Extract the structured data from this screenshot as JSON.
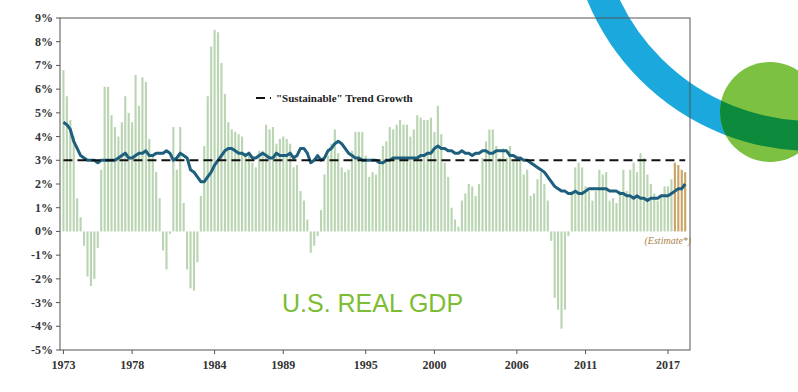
{
  "chart_data": {
    "type": "bar",
    "title": "U.S. REAL GDP",
    "x": [
      1973,
      1973.25,
      1973.5,
      1973.75,
      1974,
      1974.25,
      1974.5,
      1974.75,
      1975,
      1975.25,
      1975.5,
      1975.75,
      1976,
      1976.25,
      1976.5,
      1976.75,
      1977,
      1977.25,
      1977.5,
      1977.75,
      1978,
      1978.25,
      1978.5,
      1978.75,
      1979,
      1979.25,
      1979.5,
      1979.75,
      1980,
      1980.25,
      1980.5,
      1980.75,
      1981,
      1981.25,
      1981.5,
      1981.75,
      1982,
      1982.25,
      1982.5,
      1982.75,
      1983,
      1983.25,
      1983.5,
      1983.75,
      1984,
      1984.25,
      1984.5,
      1984.75,
      1985,
      1985.25,
      1985.5,
      1985.75,
      1986,
      1986.25,
      1986.5,
      1986.75,
      1987,
      1987.25,
      1987.5,
      1987.75,
      1988,
      1988.25,
      1988.5,
      1988.75,
      1989,
      1989.25,
      1989.5,
      1989.75,
      1990,
      1990.25,
      1990.5,
      1990.75,
      1991,
      1991.25,
      1991.5,
      1991.75,
      1992,
      1992.25,
      1992.5,
      1992.75,
      1993,
      1993.25,
      1993.5,
      1993.75,
      1994,
      1994.25,
      1994.5,
      1994.75,
      1995,
      1995.25,
      1995.5,
      1995.75,
      1996,
      1996.25,
      1996.5,
      1996.75,
      1997,
      1997.25,
      1997.5,
      1997.75,
      1998,
      1998.25,
      1998.5,
      1998.75,
      1999,
      1999.25,
      1999.5,
      1999.75,
      2000,
      2000.25,
      2000.5,
      2000.75,
      2001,
      2001.25,
      2001.5,
      2001.75,
      2002,
      2002.25,
      2002.5,
      2002.75,
      2003,
      2003.25,
      2003.5,
      2003.75,
      2004,
      2004.25,
      2004.5,
      2004.75,
      2005,
      2005.25,
      2005.5,
      2005.75,
      2006,
      2006.25,
      2006.5,
      2006.75,
      2007,
      2007.25,
      2007.5,
      2007.75,
      2008,
      2008.25,
      2008.5,
      2008.75,
      2009,
      2009.25,
      2009.5,
      2009.75,
      2010,
      2010.25,
      2010.5,
      2010.75,
      2011,
      2011.25,
      2011.5,
      2011.75,
      2012,
      2012.25,
      2012.5,
      2012.75,
      2013,
      2013.25,
      2013.5,
      2013.75,
      2014,
      2014.25,
      2014.5,
      2014.75,
      2015,
      2015.25,
      2015.5,
      2015.75,
      2016,
      2016.25,
      2016.5,
      2016.75,
      2017,
      2017.25,
      2017.5,
      2017.75,
      2018,
      2018.25
    ],
    "series": [
      {
        "type": "bar",
        "color": "#b9d5b2",
        "values": [
          6.8,
          5.7,
          4.7,
          4.0,
          1.4,
          0.6,
          -0.6,
          -1.9,
          -2.3,
          -2.0,
          -0.7,
          2.6,
          6.1,
          6.1,
          4.9,
          4.4,
          4.0,
          4.6,
          5.7,
          5.0,
          4.6,
          6.6,
          5.3,
          6.5,
          6.3,
          3.9,
          3.2,
          2.5,
          1.4,
          -0.8,
          -1.6,
          -0.1,
          4.4,
          2.6,
          4.4,
          1.2,
          -1.6,
          -2.4,
          -2.5,
          -1.3,
          1.5,
          3.6,
          5.7,
          7.8,
          8.5,
          8.4,
          7.1,
          5.8,
          4.6,
          4.3,
          4.2,
          4.1,
          4.0,
          3.3,
          3.2,
          2.9,
          2.7,
          3.4,
          3.4,
          4.5,
          4.3,
          4.4,
          3.7,
          3.9,
          4.0,
          3.9,
          3.7,
          2.7,
          2.8,
          1.7,
          1.3,
          0.5,
          -0.9,
          -0.6,
          -0.2,
          0.9,
          2.4,
          3.2,
          3.7,
          4.3,
          3.3,
          2.7,
          2.5,
          2.6,
          3.4,
          4.2,
          4.2,
          4.2,
          3.2,
          2.3,
          2.5,
          2.4,
          2.8,
          3.6,
          3.8,
          4.4,
          4.3,
          4.5,
          4.7,
          4.5,
          4.5,
          4.0,
          4.3,
          4.9,
          4.8,
          4.7,
          4.7,
          4.8,
          4.2,
          5.3,
          4.1,
          2.9,
          2.3,
          1.0,
          0.5,
          0.2,
          1.3,
          1.6,
          2.0,
          1.9,
          1.5,
          2.0,
          3.1,
          3.8,
          4.3,
          4.3,
          3.6,
          3.1,
          3.5,
          3.1,
          3.6,
          3.0,
          3.2,
          3.0,
          2.4,
          2.6,
          1.5,
          1.6,
          2.2,
          2.5,
          2.0,
          1.3,
          -0.4,
          -2.8,
          -3.3,
          -4.1,
          -3.3,
          -0.2,
          1.7,
          2.7,
          2.9,
          2.7,
          1.9,
          1.7,
          1.3,
          1.7,
          2.6,
          2.4,
          2.5,
          1.3,
          1.4,
          1.2,
          1.7,
          2.6,
          1.7,
          2.6,
          2.9,
          2.5,
          3.3,
          3.1,
          2.4,
          2.0,
          1.6,
          1.3,
          1.5,
          1.9,
          1.9,
          2.2,
          null,
          null,
          null,
          null
        ]
      },
      {
        "name": "(Estimate*)",
        "type": "bar",
        "color": "#c9a566",
        "values": [
          null,
          null,
          null,
          null,
          null,
          null,
          null,
          null,
          null,
          null,
          null,
          null,
          null,
          null,
          null,
          null,
          null,
          null,
          null,
          null,
          null,
          null,
          null,
          null,
          null,
          null,
          null,
          null,
          null,
          null,
          null,
          null,
          null,
          null,
          null,
          null,
          null,
          null,
          null,
          null,
          null,
          null,
          null,
          null,
          null,
          null,
          null,
          null,
          null,
          null,
          null,
          null,
          null,
          null,
          null,
          null,
          null,
          null,
          null,
          null,
          null,
          null,
          null,
          null,
          null,
          null,
          null,
          null,
          null,
          null,
          null,
          null,
          null,
          null,
          null,
          null,
          null,
          null,
          null,
          null,
          null,
          null,
          null,
          null,
          null,
          null,
          null,
          null,
          null,
          null,
          null,
          null,
          null,
          null,
          null,
          null,
          null,
          null,
          null,
          null,
          null,
          null,
          null,
          null,
          null,
          null,
          null,
          null,
          null,
          null,
          null,
          null,
          null,
          null,
          null,
          null,
          null,
          null,
          null,
          null,
          null,
          null,
          null,
          null,
          null,
          null,
          null,
          null,
          null,
          null,
          null,
          null,
          null,
          null,
          null,
          null,
          null,
          null,
          null,
          null,
          null,
          null,
          null,
          null,
          null,
          null,
          null,
          null,
          null,
          null,
          null,
          null,
          null,
          null,
          null,
          null,
          null,
          null,
          null,
          null,
          null,
          null,
          null,
          null,
          null,
          null,
          null,
          null,
          null,
          null,
          null,
          null,
          null,
          null,
          null,
          null,
          null,
          null,
          2.9,
          2.8,
          2.6,
          2.5
        ]
      },
      {
        "type": "line",
        "color": "#1d5f7d",
        "values": [
          4.6,
          4.5,
          4.3,
          3.8,
          3.5,
          3.2,
          3.1,
          3.0,
          3.0,
          3.0,
          2.9,
          3.0,
          3.0,
          3.0,
          3.0,
          3.0,
          3.1,
          3.2,
          3.3,
          3.1,
          3.1,
          3.2,
          3.3,
          3.3,
          3.4,
          3.2,
          3.2,
          3.3,
          3.3,
          3.3,
          3.4,
          3.3,
          3.0,
          3.1,
          3.3,
          3.2,
          3.1,
          2.6,
          2.5,
          2.3,
          2.1,
          2.1,
          2.3,
          2.5,
          2.8,
          3.0,
          3.2,
          3.4,
          3.5,
          3.5,
          3.4,
          3.3,
          3.3,
          3.2,
          3.3,
          3.1,
          3.1,
          3.2,
          3.3,
          3.2,
          3.1,
          3.1,
          3.3,
          3.2,
          3.2,
          3.2,
          3.3,
          3.1,
          3.2,
          3.5,
          3.5,
          3.3,
          2.9,
          3.0,
          3.2,
          3.0,
          3.1,
          3.4,
          3.5,
          3.7,
          3.8,
          3.7,
          3.5,
          3.3,
          3.2,
          3.1,
          3.1,
          3.0,
          3.0,
          3.0,
          3.0,
          3.0,
          2.9,
          2.9,
          3.0,
          3.0,
          3.1,
          3.1,
          3.1,
          3.1,
          3.1,
          3.1,
          3.1,
          3.1,
          3.2,
          3.2,
          3.3,
          3.3,
          3.5,
          3.6,
          3.5,
          3.5,
          3.4,
          3.4,
          3.3,
          3.3,
          3.4,
          3.3,
          3.3,
          3.2,
          3.3,
          3.3,
          3.4,
          3.4,
          3.3,
          3.3,
          3.4,
          3.4,
          3.4,
          3.4,
          3.2,
          3.2,
          3.1,
          3.1,
          3.0,
          3.0,
          2.9,
          2.8,
          2.7,
          2.6,
          2.5,
          2.3,
          2.1,
          1.9,
          1.8,
          1.7,
          1.7,
          1.6,
          1.6,
          1.7,
          1.6,
          1.6,
          1.7,
          1.8,
          1.8,
          1.8,
          1.8,
          1.8,
          1.8,
          1.7,
          1.7,
          1.7,
          1.6,
          1.6,
          1.5,
          1.5,
          1.4,
          1.5,
          1.4,
          1.4,
          1.3,
          1.4,
          1.4,
          1.4,
          1.5,
          1.5,
          1.5,
          1.6,
          1.7,
          1.8,
          1.8,
          2.0
        ]
      },
      {
        "name": "\"Sustainable\" Trend Growth",
        "type": "line",
        "line_style": "dashed",
        "color": "#111111",
        "values": [
          3,
          3,
          3,
          3,
          3,
          3,
          3,
          3,
          3,
          3,
          3,
          3,
          3,
          3,
          3,
          3,
          3,
          3,
          3,
          3,
          3,
          3,
          3,
          3,
          3,
          3,
          3,
          3,
          3,
          3,
          3,
          3,
          3,
          3,
          3,
          3,
          3,
          3,
          3,
          3,
          3,
          3,
          3,
          3,
          3,
          3,
          3,
          3,
          3,
          3,
          3,
          3,
          3,
          3,
          3,
          3,
          3,
          3,
          3,
          3,
          3,
          3,
          3,
          3,
          3,
          3,
          3,
          3,
          3,
          3,
          3,
          3,
          3,
          3,
          3,
          3,
          3,
          3,
          3,
          3,
          3,
          3,
          3,
          3,
          3,
          3,
          3,
          3,
          3,
          3,
          3,
          3,
          3,
          3,
          3,
          3,
          3,
          3,
          3,
          3,
          3,
          3,
          3,
          3,
          3,
          3,
          3,
          3,
          3,
          3,
          3,
          3,
          3,
          3,
          3,
          3,
          3,
          3,
          3,
          3,
          3,
          3,
          3,
          3,
          3,
          3,
          3,
          3,
          3,
          3,
          3,
          3,
          3,
          3,
          3,
          3,
          3,
          3,
          3,
          3,
          3,
          3,
          3,
          3,
          3,
          3,
          3,
          3,
          3,
          3,
          3,
          3,
          3,
          3,
          3,
          3,
          3,
          3,
          3,
          3,
          3,
          3,
          3,
          3,
          3,
          3,
          3,
          3,
          3,
          3,
          3,
          3,
          3,
          3,
          3,
          3,
          3,
          3,
          3,
          3,
          3,
          3
        ]
      }
    ],
    "xlim": [
      1972.75,
      2018.6
    ],
    "xticks": [
      1973,
      1978,
      1984,
      1989,
      1995,
      2000,
      2006,
      2011,
      2017
    ],
    "ylim": [
      -5,
      9
    ],
    "yticks": [
      {
        "value": -5,
        "label": "-5%"
      },
      {
        "value": -4,
        "label": "-4%"
      },
      {
        "value": -3,
        "label": "-3%"
      },
      {
        "value": -2,
        "label": "-2%"
      },
      {
        "value": -1,
        "label": "-1%"
      },
      {
        "value": 0,
        "label": "0%"
      },
      {
        "value": 1,
        "label": "1%"
      },
      {
        "value": 2,
        "label": "2%"
      },
      {
        "value": 3,
        "label": "3%"
      },
      {
        "value": 4,
        "label": "4%"
      },
      {
        "value": 5,
        "label": "5%"
      },
      {
        "value": 6,
        "label": "6%"
      },
      {
        "value": 7,
        "label": "7%"
      },
      {
        "value": 8,
        "label": "8%"
      },
      {
        "value": 9,
        "label": "9%"
      }
    ],
    "grid": false
  }
}
